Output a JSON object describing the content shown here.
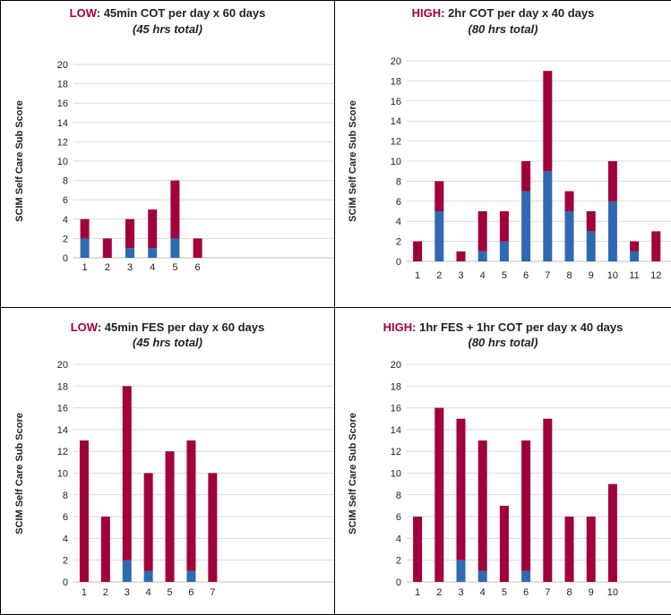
{
  "colors": {
    "base": "#2e6ab1",
    "top": "#a0003c",
    "accent": "#a8003a",
    "grid": "#d9d9d9"
  },
  "chart_data": [
    {
      "type": "bar",
      "stacked": true,
      "title_accent": "LOW",
      "title_rest": ": 45min COT per day x 60 days",
      "subtitle": "(45 hrs total)",
      "ylabel": "SCIM Self Care Sub Score",
      "ylim": [
        0,
        20
      ],
      "yticks": [
        0,
        2,
        4,
        6,
        8,
        10,
        12,
        14,
        16,
        18,
        20
      ],
      "categories": [
        "1",
        "2",
        "3",
        "4",
        "5",
        "6"
      ],
      "series": [
        {
          "values": [
            2,
            0,
            1,
            1,
            2,
            0
          ]
        },
        {
          "values": [
            2,
            2,
            3,
            4,
            6,
            2
          ]
        }
      ]
    },
    {
      "type": "bar",
      "stacked": true,
      "title_accent": "HIGH",
      "title_rest": ": 2hr COT per day x 40 days",
      "subtitle": "(80 hrs total)",
      "ylabel": "SCIM Self Care Sub Score",
      "ylim": [
        0,
        20
      ],
      "yticks": [
        0,
        2,
        4,
        6,
        8,
        10,
        12,
        14,
        16,
        18,
        20
      ],
      "categories": [
        "1",
        "2",
        "3",
        "4",
        "5",
        "6",
        "7",
        "8",
        "9",
        "10",
        "11",
        "12"
      ],
      "series": [
        {
          "values": [
            0,
            5,
            0,
            1,
            2,
            7,
            9,
            5,
            3,
            6,
            1,
            0
          ]
        },
        {
          "values": [
            2,
            3,
            1,
            4,
            3,
            3,
            10,
            2,
            2,
            4,
            1,
            3
          ]
        }
      ]
    },
    {
      "type": "bar",
      "stacked": true,
      "title_accent": "LOW",
      "title_rest": ": 45min FES per day x 60 days",
      "subtitle": "(45 hrs total)",
      "ylabel": "SCIM Self Care Sub Score",
      "ylim": [
        0,
        20
      ],
      "yticks": [
        0,
        2,
        4,
        6,
        8,
        10,
        12,
        14,
        16,
        18,
        20
      ],
      "categories": [
        "1",
        "2",
        "3",
        "4",
        "5",
        "6",
        "7"
      ],
      "series": [
        {
          "values": [
            0,
            0,
            2,
            1,
            0,
            1,
            0
          ]
        },
        {
          "values": [
            13,
            6,
            16,
            9,
            12,
            12,
            10
          ]
        }
      ]
    },
    {
      "type": "bar",
      "stacked": true,
      "title_accent": "HIGH",
      "title_rest": ": 1hr FES + 1hr COT per day x 40 days",
      "subtitle": "(80 hrs total)",
      "ylabel": "SCIM Self Care Sub Score",
      "ylim": [
        0,
        20
      ],
      "yticks": [
        0,
        2,
        4,
        6,
        8,
        10,
        12,
        14,
        16,
        18,
        20
      ],
      "categories": [
        "1",
        "2",
        "3",
        "4",
        "5",
        "6",
        "7",
        "8",
        "9",
        "10"
      ],
      "series": [
        {
          "values": [
            0,
            0,
            2,
            1,
            0,
            1,
            0,
            0,
            0,
            0
          ]
        },
        {
          "values": [
            6,
            16,
            13,
            12,
            7,
            12,
            15,
            6,
            6,
            9
          ]
        }
      ]
    }
  ]
}
